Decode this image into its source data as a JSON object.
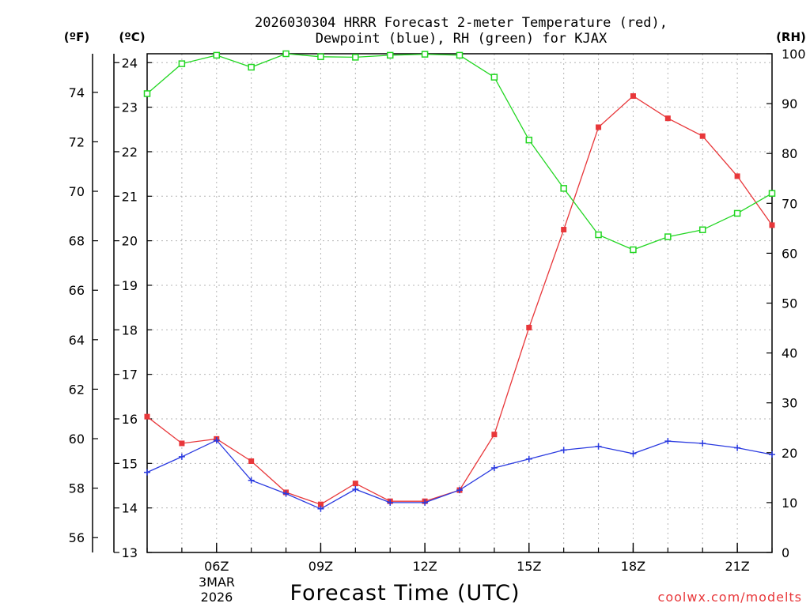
{
  "chart_data": {
    "type": "line",
    "title": "2026030304 HRRR Forecast 2-meter Temperature (red),",
    "subtitle": "Dewpoint (blue), RH (green) for KJAX",
    "xlabel": "Forecast Time (UTC)",
    "credit": "coolwx.com/modelts",
    "units": {
      "fahrenheit": "(ºF)",
      "celsius": "(ºC)",
      "rh": "(RH)"
    },
    "date_label": {
      "day": "3MAR",
      "year": "2026"
    },
    "x_ticks": [
      "06Z",
      "09Z",
      "12Z",
      "15Z",
      "18Z",
      "21Z"
    ],
    "x": [
      4,
      5,
      6,
      7,
      8,
      9,
      10,
      11,
      12,
      13,
      14,
      15,
      16,
      17,
      18,
      19,
      20,
      21,
      22
    ],
    "x_range": [
      4,
      22
    ],
    "ylim_c": [
      13,
      24.2
    ],
    "yticks_c": [
      "13",
      "14",
      "15",
      "16",
      "17",
      "18",
      "19",
      "20",
      "21",
      "22",
      "23",
      "24"
    ],
    "yticks_f": [
      "56",
      "58",
      "60",
      "62",
      "64",
      "66",
      "68",
      "70",
      "72",
      "74"
    ],
    "ylim_rh": [
      0,
      100
    ],
    "yticks_rh": [
      "0",
      "10",
      "20",
      "30",
      "40",
      "50",
      "60",
      "70",
      "80",
      "90",
      "100"
    ],
    "series": [
      {
        "name": "Temperature",
        "axis": "c",
        "color": "#e8373a",
        "marker": "filled-square",
        "values": [
          16.05,
          15.45,
          15.55,
          15.05,
          14.35,
          14.08,
          14.55,
          14.15,
          14.15,
          14.4,
          15.65,
          18.05,
          20.25,
          22.55,
          23.25,
          22.75,
          22.35,
          21.45,
          20.35
        ]
      },
      {
        "name": "Dewpoint",
        "axis": "c",
        "color": "#2a3ae0",
        "marker": "plus",
        "values": [
          14.8,
          15.15,
          15.52,
          14.62,
          14.32,
          13.98,
          14.42,
          14.12,
          14.12,
          14.4,
          14.9,
          15.1,
          15.3,
          15.38,
          15.22,
          15.5,
          15.45,
          15.35,
          15.2
        ]
      },
      {
        "name": "RH",
        "axis": "rh",
        "color": "#22d622",
        "marker": "open-square",
        "values": [
          92.0,
          98.0,
          99.7,
          97.3,
          100,
          99.4,
          99.3,
          99.7,
          99.9,
          99.7,
          95.3,
          82.7,
          73.0,
          63.7,
          60.7,
          63.3,
          64.7,
          68.0,
          72.0
        ]
      }
    ]
  }
}
